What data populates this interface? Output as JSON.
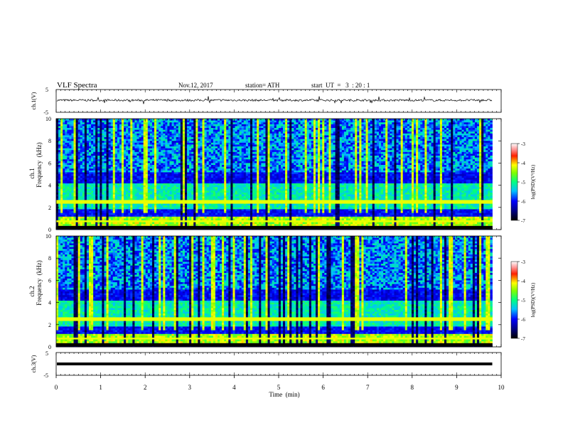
{
  "header": {
    "title": "VLF  Spectra",
    "date": "Nov.12, 2017",
    "station": "station= ATH",
    "start": "start  UT  =   3  : 20 : 1"
  },
  "chart_data": [
    {
      "type": "line",
      "ylabel": "ch.1(V)",
      "ylim": [
        -5,
        5
      ],
      "yticks": [
        "5",
        "-5"
      ],
      "description_free": true
    },
    {
      "type": "heatmap",
      "ylabel_channel": "ch.1",
      "ylabel": "Frequency  (kHz)",
      "ylim": [
        0,
        10
      ],
      "yticks": [
        "0",
        "2",
        "4",
        "6",
        "8",
        "10"
      ],
      "colorbar": {
        "label": "log(PSD)(V²/Hz)",
        "range": [
          -7,
          -3
        ],
        "ticks": [
          "-3",
          "-4",
          "-5",
          "-6",
          "-7"
        ]
      }
    },
    {
      "type": "heatmap",
      "ylabel_channel": "ch.2",
      "ylabel": "Frequency  (kHz)",
      "ylim": [
        0,
        10
      ],
      "yticks": [
        "0",
        "2",
        "4",
        "6",
        "8",
        "10"
      ],
      "colorbar": {
        "label": "log(PSD)(V²/Hz)",
        "range": [
          -7,
          -3
        ],
        "ticks": [
          "-3",
          "-4",
          "-5",
          "-6",
          "-7"
        ]
      }
    },
    {
      "type": "line",
      "ylabel": "ch.3(V)",
      "ylim": [
        -5,
        5
      ],
      "yticks": [
        "5",
        "-5"
      ],
      "constant_value": 0
    }
  ],
  "xaxis": {
    "label": "Time  (min)",
    "range": [
      0,
      10
    ],
    "ticks": [
      "0",
      "1",
      "2",
      "3",
      "4",
      "5",
      "6",
      "7",
      "8",
      "9",
      "10"
    ],
    "data_end": 9.8
  }
}
